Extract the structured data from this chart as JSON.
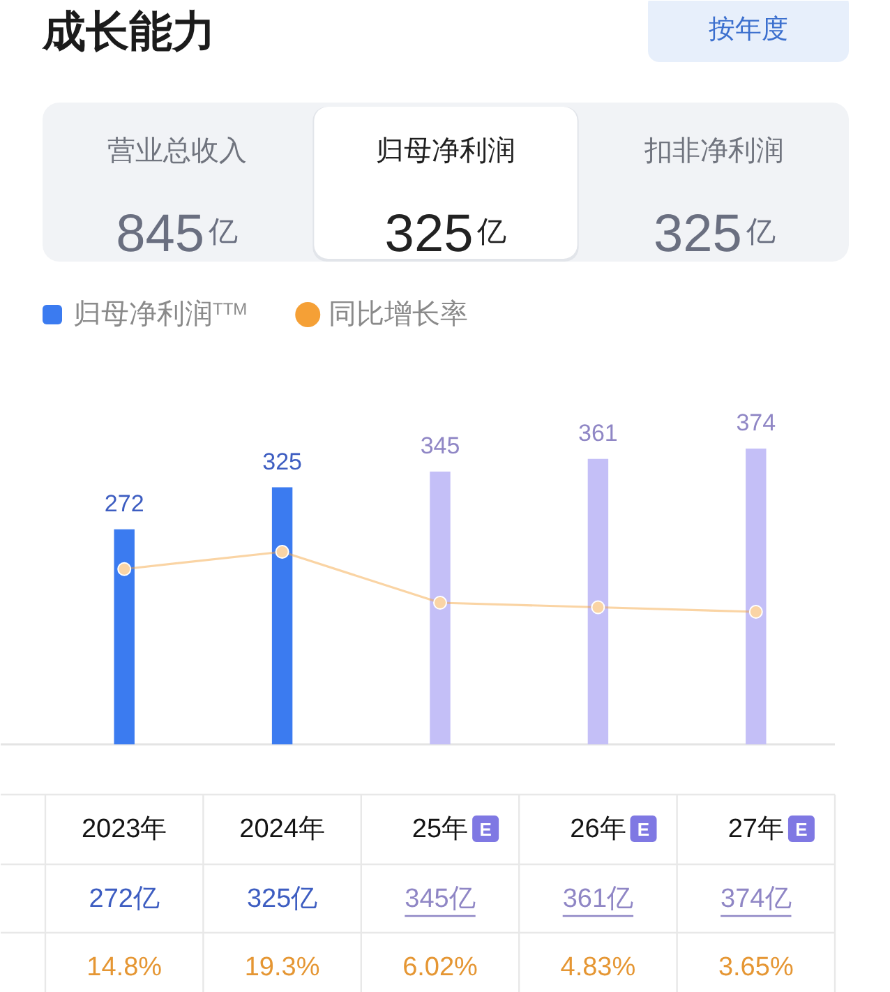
{
  "chart_data": [
    {
      "type": "other",
      "title": "成长能力",
      "annotations": [
        "按年度",
        "营业总收入",
        "845亿",
        "归母净利润",
        "325亿",
        "扣非净利润",
        "325亿"
      ]
    },
    {
      "type": "bar",
      "categories": [
        "2023年",
        "2024年",
        "25年",
        "26年",
        "27年"
      ],
      "series": [
        {
          "name": "归母净利润$^{TTM}$",
          "type": "bar",
          "color": "#3b7bf0",
          "colors": [
            "#3b7bf0",
            "#3b7bf0",
            "#c4bff7",
            "#c4bff7",
            "#c4bff7"
          ],
          "values": [
            272,
            325,
            345,
            361,
            374
          ]
        },
        {
          "name": "同比增长率",
          "type": "line",
          "axis": "y2",
          "color": "#f5a036",
          "values": [
            14.8,
            19.3,
            6.02,
            4.83,
            3.65
          ],
          "value_labels": [
            "14.8%",
            "19.3%",
            "6.02%",
            "4.83%",
            "3.65%"
          ]
        }
      ],
      "data_labels": true,
      "legend": "top left",
      "marker": "circle",
      "tick_labels": "x",
      "annotations": [
        "272亿",
        "325亿",
        "345亿",
        "361亿",
        "374亿",
        "E",
        "E",
        "E"
      ]
    }
  ]
}
